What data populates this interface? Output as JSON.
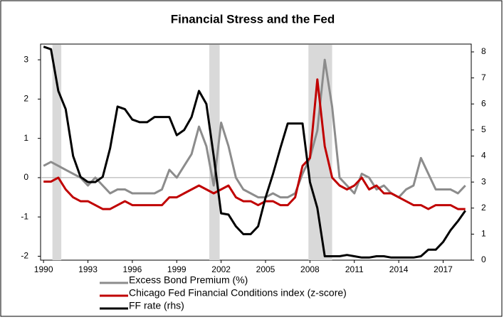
{
  "chart_data": {
    "type": "line",
    "title": "Financial Stress and the Fed",
    "x": [
      1990,
      1990.5,
      1991,
      1991.5,
      1992,
      1992.5,
      1993,
      1993.5,
      1994,
      1994.5,
      1995,
      1995.5,
      1996,
      1996.5,
      1997,
      1997.5,
      1998,
      1998.5,
      1999,
      1999.5,
      2000,
      2000.5,
      2001,
      2001.5,
      2002,
      2002.5,
      2003,
      2003.5,
      2004,
      2004.5,
      2005,
      2005.5,
      2006,
      2006.5,
      2007,
      2007.5,
      2008,
      2008.5,
      2009,
      2009.5,
      2010,
      2010.5,
      2011,
      2011.5,
      2012,
      2012.5,
      2013,
      2013.5,
      2014,
      2014.5,
      2015,
      2015.5,
      2016,
      2016.5,
      2017,
      2017.5,
      2018,
      2018.5
    ],
    "series": [
      {
        "name": "Excess Bond Premium (%)",
        "color": "#8c8c8c",
        "axis": "y",
        "values": [
          0.3,
          0.4,
          0.3,
          0.2,
          0.1,
          0.0,
          -0.2,
          0.0,
          -0.2,
          -0.4,
          -0.3,
          -0.3,
          -0.4,
          -0.4,
          -0.4,
          -0.4,
          -0.3,
          0.2,
          0.0,
          0.3,
          0.6,
          1.3,
          0.8,
          -0.2,
          1.4,
          0.8,
          0.0,
          -0.3,
          -0.4,
          -0.5,
          -0.5,
          -0.4,
          -0.5,
          -0.5,
          -0.4,
          0.1,
          0.5,
          1.2,
          3.0,
          1.8,
          0.0,
          -0.2,
          -0.4,
          0.1,
          0.0,
          -0.3,
          -0.2,
          -0.4,
          -0.5,
          -0.3,
          -0.2,
          0.5,
          0.1,
          -0.3,
          -0.3,
          -0.3,
          -0.4,
          -0.2
        ]
      },
      {
        "name": "Chicago Fed Financial Conditions index (z-score)",
        "color": "#c00000",
        "axis": "y",
        "values": [
          -0.1,
          -0.1,
          0.0,
          -0.3,
          -0.5,
          -0.6,
          -0.6,
          -0.7,
          -0.8,
          -0.8,
          -0.7,
          -0.6,
          -0.7,
          -0.7,
          -0.7,
          -0.7,
          -0.7,
          -0.5,
          -0.5,
          -0.4,
          -0.3,
          -0.2,
          -0.3,
          -0.4,
          -0.3,
          -0.2,
          -0.5,
          -0.6,
          -0.6,
          -0.7,
          -0.6,
          -0.6,
          -0.7,
          -0.7,
          -0.5,
          0.3,
          0.5,
          2.5,
          0.8,
          0.0,
          -0.2,
          -0.3,
          -0.2,
          0.0,
          -0.3,
          -0.2,
          -0.4,
          -0.4,
          -0.5,
          -0.6,
          -0.7,
          -0.7,
          -0.8,
          -0.7,
          -0.7,
          -0.7,
          -0.8,
          -0.8
        ]
      },
      {
        "name": "FF rate (rhs)",
        "color": "#000000",
        "axis": "y2",
        "values": [
          8.2,
          8.1,
          6.5,
          5.8,
          4.0,
          3.2,
          3.0,
          3.0,
          3.2,
          4.3,
          5.9,
          5.8,
          5.4,
          5.3,
          5.3,
          5.5,
          5.5,
          5.5,
          4.8,
          5.0,
          5.5,
          6.5,
          6.0,
          4.0,
          1.8,
          1.75,
          1.3,
          1.0,
          1.0,
          1.3,
          2.4,
          3.3,
          4.3,
          5.25,
          5.25,
          5.25,
          3.0,
          2.0,
          0.15,
          0.15,
          0.15,
          0.2,
          0.15,
          0.1,
          0.1,
          0.15,
          0.15,
          0.1,
          0.1,
          0.1,
          0.1,
          0.15,
          0.4,
          0.4,
          0.7,
          1.15,
          1.5,
          1.9
        ]
      }
    ],
    "shaded_periods": [
      [
        1990.6,
        1991.2
      ],
      [
        2001.2,
        2001.9
      ],
      [
        2007.9,
        2009.5
      ]
    ],
    "shade_color": "#d9d9d9",
    "xlim": [
      1989.8,
      2018.9
    ],
    "xticks": [
      1990,
      1993,
      1996,
      1999,
      2002,
      2005,
      2008,
      2011,
      2014,
      2017
    ],
    "ylim": [
      -2.1,
      3.4
    ],
    "yticks": [
      -2,
      -1,
      0,
      1,
      2,
      3
    ],
    "y2lim": [
      0,
      8.3
    ],
    "y2ticks": [
      0,
      1,
      2,
      3,
      4,
      5,
      6,
      7,
      8
    ],
    "zero_line": true,
    "legend": "bottom"
  }
}
